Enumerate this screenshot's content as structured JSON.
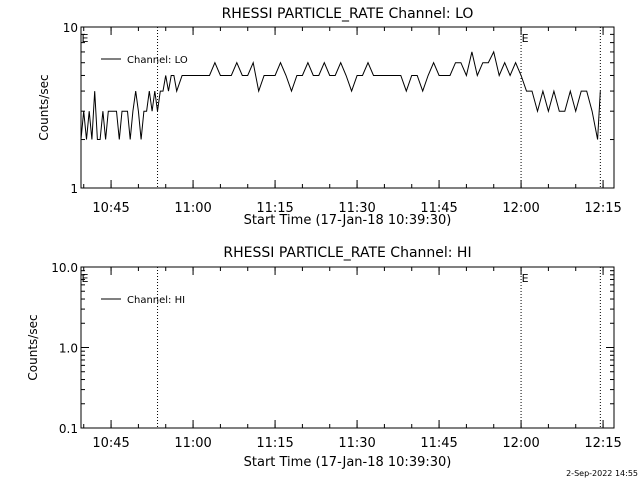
{
  "chart_data": [
    {
      "type": "line",
      "title": "RHESSI PARTICLE_RATE Channel: LO",
      "xlabel": "Start Time (17-Jan-18 10:39:30)",
      "ylabel": "Counts/sec",
      "yscale": "log",
      "ylim": [
        1,
        10
      ],
      "y_tick_labels": [
        "1",
        "10"
      ],
      "xlim": [
        "10:39:30",
        "12:17:00"
      ],
      "x_tick_labels": [
        "10:45",
        "11:00",
        "11:15",
        "11:30",
        "11:45",
        "12:00",
        "12:15"
      ],
      "event_markers": [
        {
          "time": "10:53:30",
          "label": ""
        },
        {
          "time": "12:00:00",
          "label": "E"
        },
        {
          "time": "12:14:30",
          "label": ""
        }
      ],
      "start_marker_label": "E",
      "legend": {
        "position": "top-left",
        "entries": [
          "Channel: LO"
        ]
      },
      "series": [
        {
          "name": "Channel: LO",
          "x": [
            "10:39:30",
            "10:40:00",
            "10:40:30",
            "10:41:00",
            "10:41:30",
            "10:42:00",
            "10:42:30",
            "10:43:00",
            "10:43:30",
            "10:44:00",
            "10:44:30",
            "10:45:00",
            "10:45:30",
            "10:46:00",
            "10:46:30",
            "10:47:00",
            "10:47:30",
            "10:48:00",
            "10:48:30",
            "10:49:00",
            "10:49:30",
            "10:50:00",
            "10:50:30",
            "10:51:00",
            "10:51:30",
            "10:52:00",
            "10:52:30",
            "10:53:00",
            "10:53:30",
            "10:54:00",
            "10:54:30",
            "10:55:00",
            "10:55:30",
            "10:56:00",
            "10:56:30",
            "10:57:00",
            "10:58:00",
            "10:59:00",
            "11:00:00",
            "11:01:00",
            "11:02:00",
            "11:03:00",
            "11:04:00",
            "11:05:00",
            "11:06:00",
            "11:07:00",
            "11:08:00",
            "11:09:00",
            "11:10:00",
            "11:11:00",
            "11:12:00",
            "11:13:00",
            "11:14:00",
            "11:15:00",
            "11:16:00",
            "11:17:00",
            "11:18:00",
            "11:19:00",
            "11:20:00",
            "11:21:00",
            "11:22:00",
            "11:23:00",
            "11:24:00",
            "11:25:00",
            "11:26:00",
            "11:27:00",
            "11:28:00",
            "11:29:00",
            "11:30:00",
            "11:31:00",
            "11:32:00",
            "11:33:00",
            "11:34:00",
            "11:35:00",
            "11:36:00",
            "11:37:00",
            "11:38:00",
            "11:39:00",
            "11:40:00",
            "11:41:00",
            "11:42:00",
            "11:43:00",
            "11:44:00",
            "11:45:00",
            "11:46:00",
            "11:47:00",
            "11:48:00",
            "11:49:00",
            "11:50:00",
            "11:51:00",
            "11:52:00",
            "11:53:00",
            "11:54:00",
            "11:55:00",
            "11:56:00",
            "11:57:00",
            "11:58:00",
            "11:59:00",
            "12:00:00",
            "12:01:00",
            "12:02:00",
            "12:03:00",
            "12:04:00",
            "12:05:00",
            "12:06:00",
            "12:07:00",
            "12:08:00",
            "12:09:00",
            "12:10:00",
            "12:11:00",
            "12:12:00",
            "12:13:00",
            "12:14:00",
            "12:14:30"
          ],
          "y": [
            2,
            3,
            2,
            3,
            2,
            4,
            2,
            2,
            3,
            2,
            3,
            3,
            3,
            3,
            2,
            3,
            3,
            3,
            2,
            3,
            4,
            3,
            2,
            3,
            3,
            4,
            3,
            4,
            3,
            4,
            4,
            5,
            4,
            5,
            5,
            4,
            5,
            5,
            5,
            5,
            5,
            5,
            6,
            5,
            5,
            5,
            6,
            5,
            5,
            6,
            4,
            5,
            5,
            5,
            6,
            5,
            4,
            5,
            5,
            6,
            5,
            5,
            6,
            5,
            5,
            6,
            5,
            4,
            5,
            5,
            6,
            5,
            5,
            5,
            5,
            5,
            5,
            4,
            5,
            5,
            4,
            5,
            6,
            5,
            5,
            5,
            6,
            6,
            5,
            7,
            5,
            6,
            6,
            7,
            5,
            6,
            5,
            6,
            5,
            4,
            4,
            3,
            4,
            3,
            4,
            3,
            3,
            4,
            3,
            4,
            4,
            3,
            2,
            4
          ]
        }
      ]
    },
    {
      "type": "line",
      "title": "RHESSI PARTICLE_RATE Channel: HI",
      "xlabel": "Start Time (17-Jan-18 10:39:30)",
      "ylabel": "Counts/sec",
      "yscale": "log",
      "ylim": [
        0.1,
        10
      ],
      "y_tick_labels": [
        "0.1",
        "1.0",
        "10.0"
      ],
      "xlim": [
        "10:39:30",
        "12:17:00"
      ],
      "x_tick_labels": [
        "10:45",
        "11:00",
        "11:15",
        "11:30",
        "11:45",
        "12:00",
        "12:15"
      ],
      "event_markers": [
        {
          "time": "10:53:30",
          "label": ""
        },
        {
          "time": "12:00:00",
          "label": "E"
        },
        {
          "time": "12:14:30",
          "label": ""
        }
      ],
      "start_marker_label": "E",
      "legend": {
        "position": "top-left",
        "entries": [
          "Channel: HI"
        ]
      },
      "series": [
        {
          "name": "Channel: HI",
          "x": [],
          "y": []
        }
      ]
    }
  ],
  "footer": {
    "timestamp": "2-Sep-2022 14:55"
  }
}
